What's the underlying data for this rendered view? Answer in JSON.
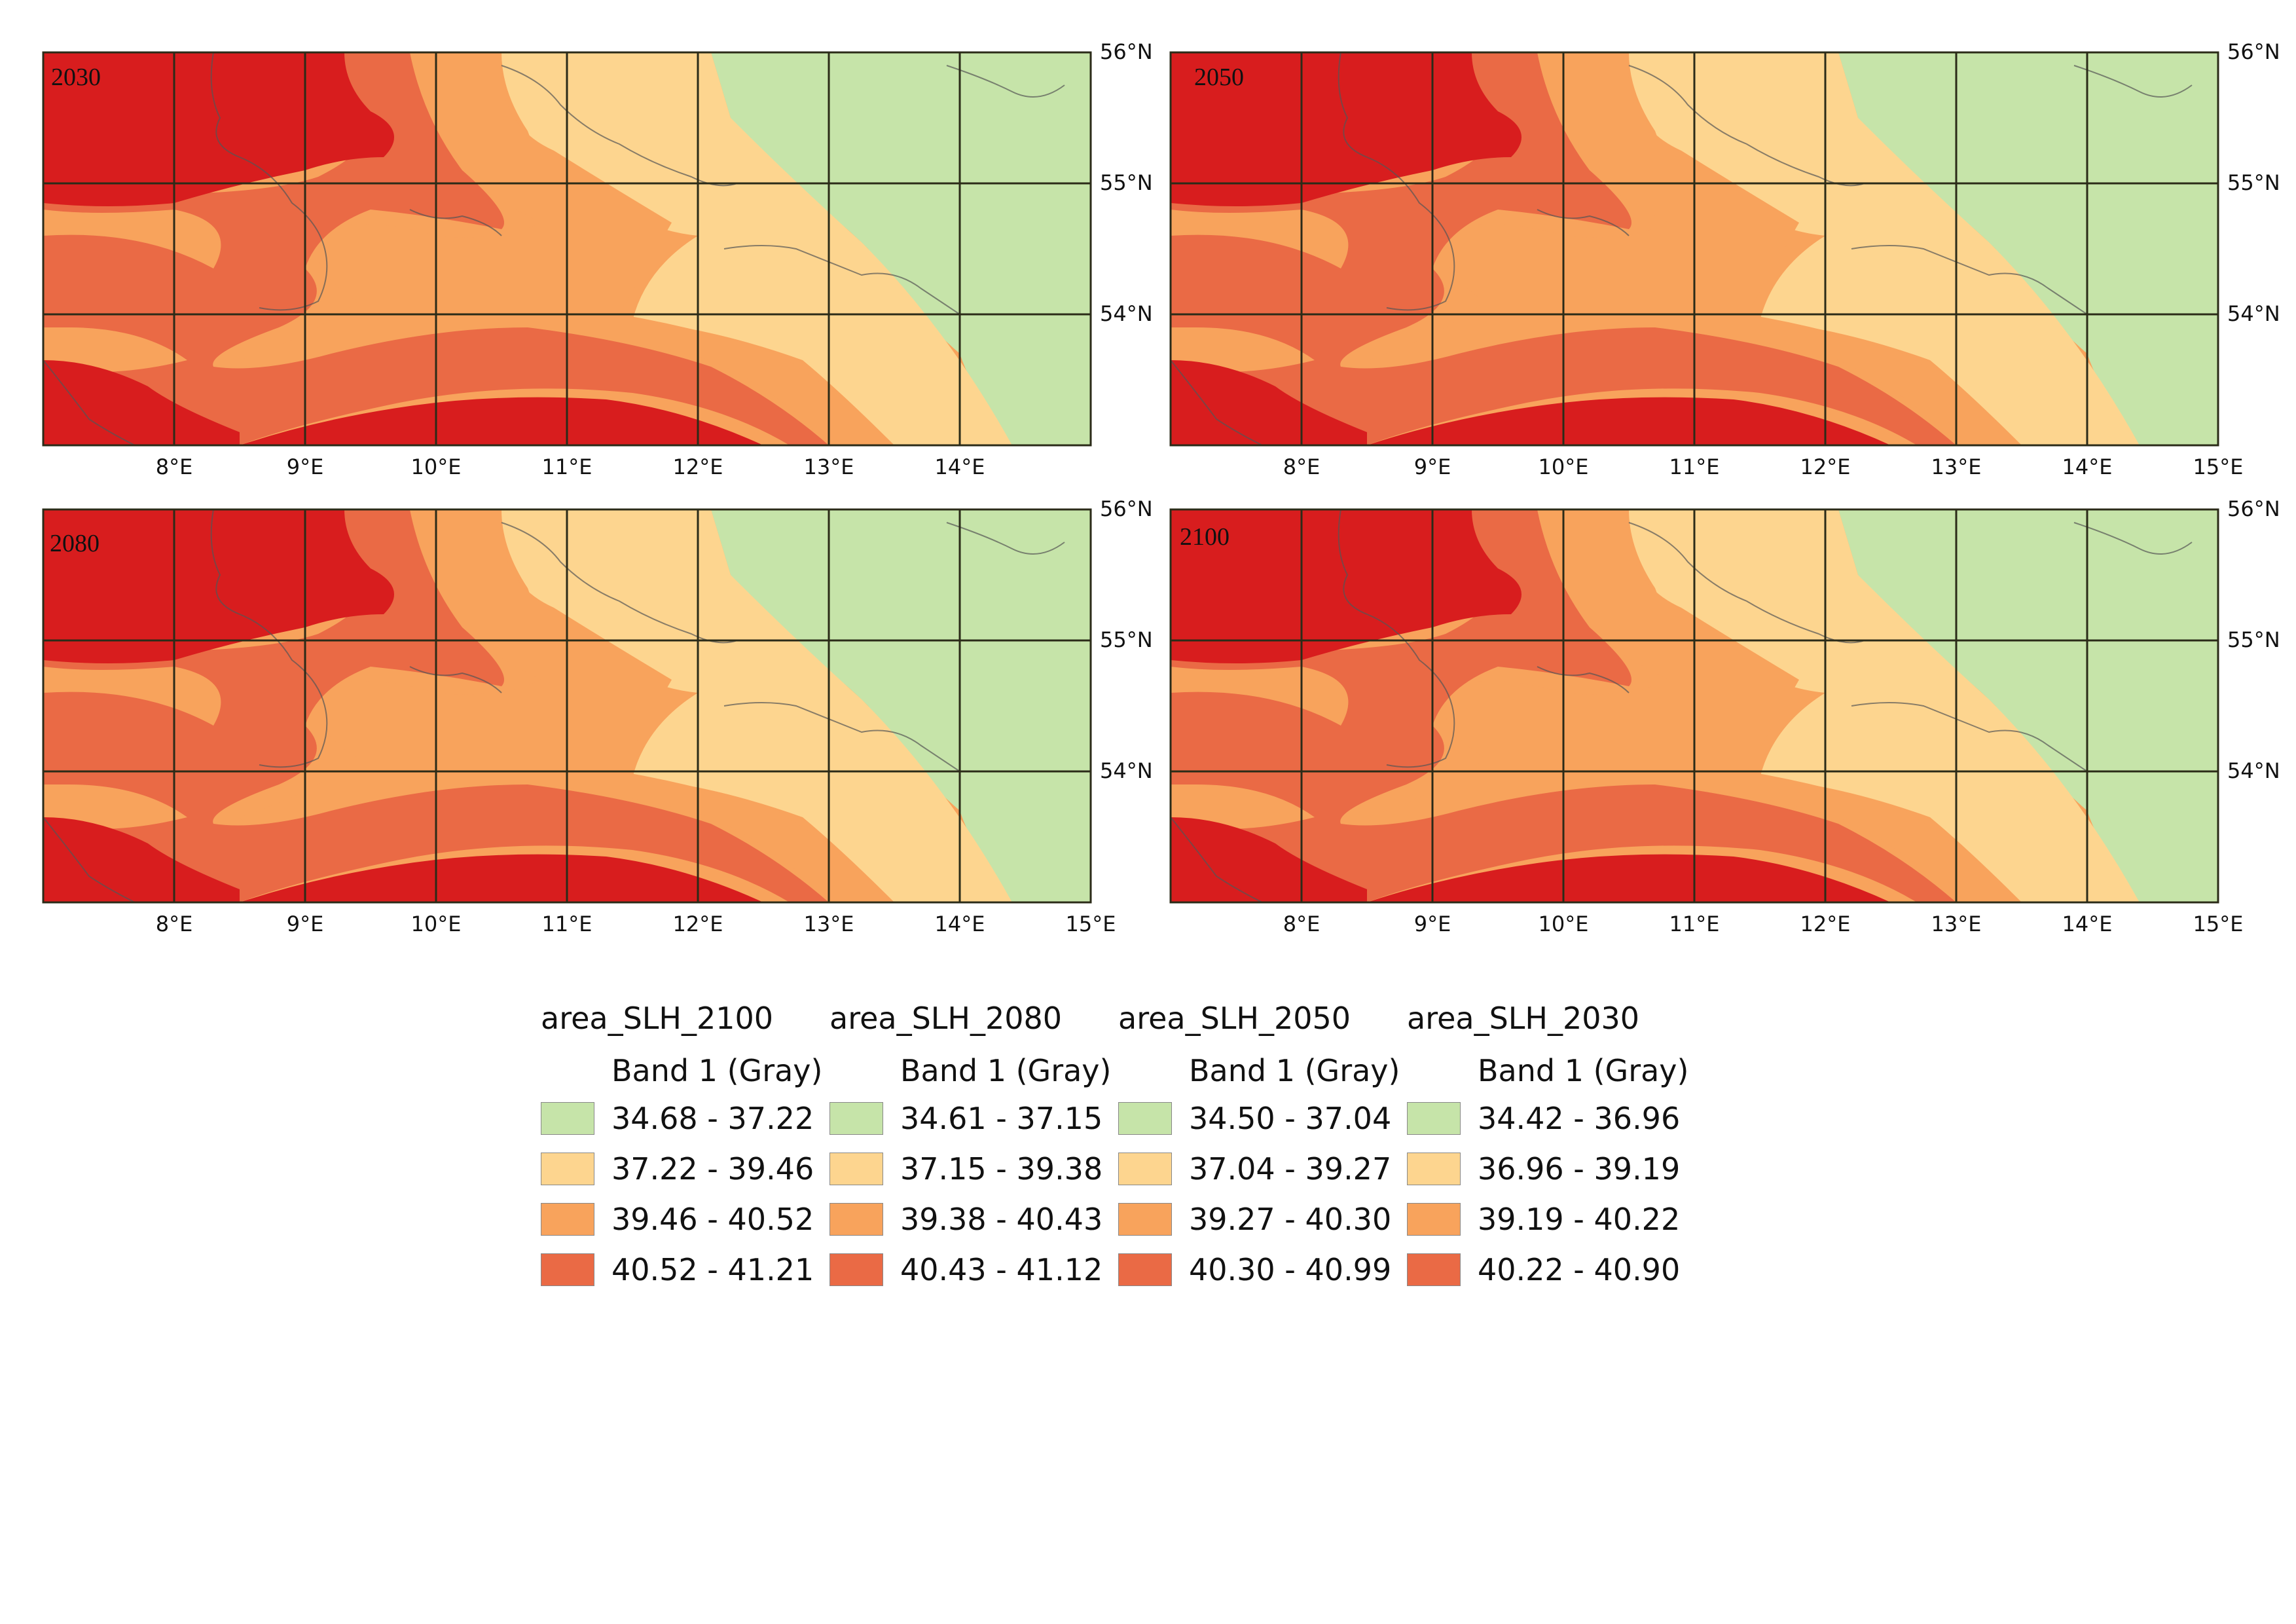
{
  "maps": [
    {
      "year": "2030",
      "x_ticks": [
        "8°E",
        "9°E",
        "10°E",
        "11°E",
        "12°E",
        "13°E",
        "14°E"
      ],
      "y_ticks": [
        "56°N",
        "55°N",
        "54°N"
      ]
    },
    {
      "year": "2050",
      "x_ticks": [
        "8°E",
        "9°E",
        "10°E",
        "11°E",
        "12°E",
        "13°E",
        "14°E",
        "15°E"
      ],
      "y_ticks": [
        "56°N",
        "55°N",
        "54°N"
      ]
    },
    {
      "year": "2080",
      "x_ticks": [
        "8°E",
        "9°E",
        "10°E",
        "11°E",
        "12°E",
        "13°E",
        "14°E",
        "15°E"
      ],
      "y_ticks": [
        "56°N",
        "55°N",
        "54°N"
      ]
    },
    {
      "year": "2100",
      "x_ticks": [
        "8°E",
        "9°E",
        "10°E",
        "11°E",
        "12°E",
        "13°E",
        "14°E",
        "15°E"
      ],
      "y_ticks": [
        "56°N",
        "55°N",
        "54°N"
      ]
    }
  ],
  "legend": [
    {
      "title": "area_SLH_2100",
      "band": "Band 1 (Gray)",
      "ranges": [
        "34.68 - 37.22",
        "37.22 - 39.46",
        "39.46 - 40.52",
        "40.52 - 41.21"
      ]
    },
    {
      "title": "area_SLH_2080",
      "band": "Band 1 (Gray)",
      "ranges": [
        "34.61 - 37.15",
        "37.15 - 39.38",
        "39.38 - 40.43",
        "40.43 - 41.12"
      ]
    },
    {
      "title": "area_SLH_2050",
      "band": "Band 1 (Gray)",
      "ranges": [
        "34.50 - 37.04",
        "37.04 - 39.27",
        "39.27 - 40.30",
        "40.30 - 40.99"
      ]
    },
    {
      "title": "area_SLH_2030",
      "band": "Band 1 (Gray)",
      "ranges": [
        "34.42 - 36.96",
        "36.96 - 39.19",
        "39.19 - 40.22",
        "40.22 - 40.90"
      ]
    }
  ],
  "colors": {
    "class1": "#c6e4a9",
    "class2": "#fdd58f",
    "class3": "#f8a35c",
    "class4": "#ea6a45",
    "class5": "#d81d1e",
    "grid": "#2b2b18",
    "coast": "#555555"
  }
}
